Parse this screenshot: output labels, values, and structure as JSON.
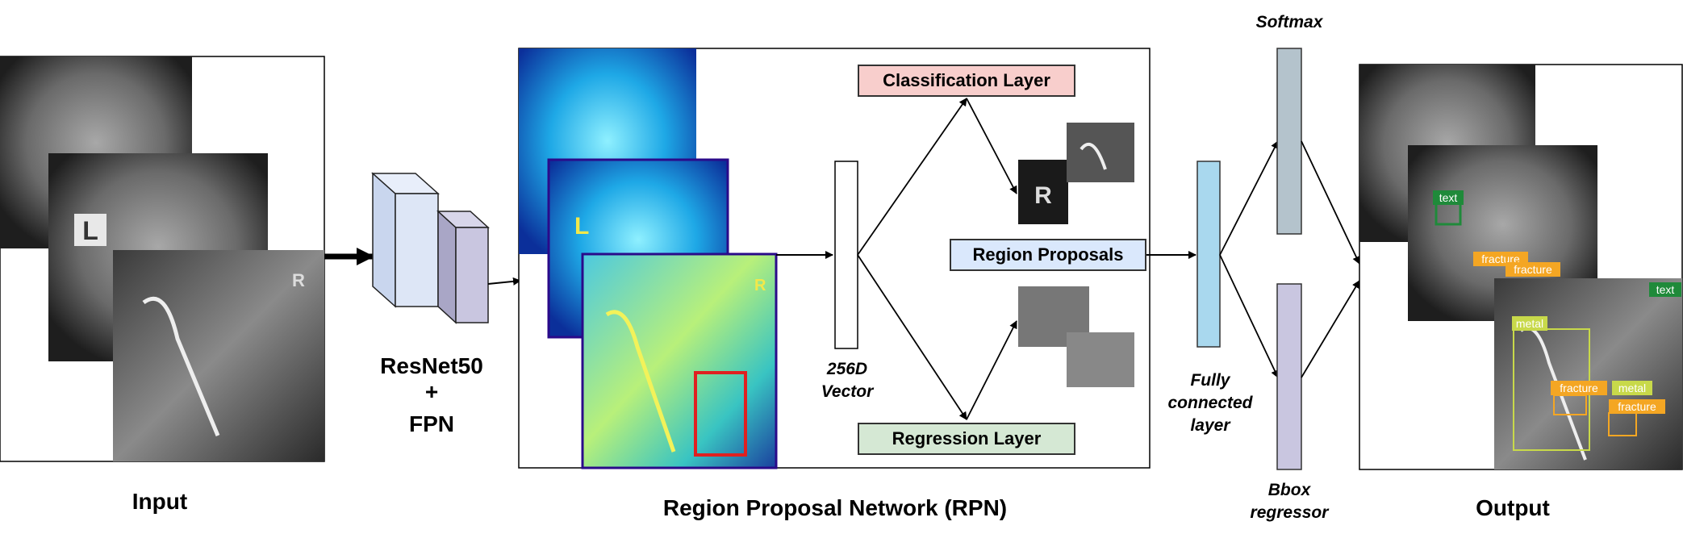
{
  "sections": {
    "input": "Input",
    "rpn": "Region Proposal Network (RPN)",
    "output": "Output"
  },
  "backbone": {
    "line1": "ResNet50",
    "line2": "+",
    "line3": "FPN"
  },
  "vector_label": {
    "line1": "256D",
    "line2": "Vector"
  },
  "layers": {
    "classification": "Classification Layer",
    "region_proposals": "Region Proposals",
    "regression": "Regression Layer"
  },
  "fc_label": {
    "line1": "Fully",
    "line2": "connected",
    "line3": "layer"
  },
  "softmax": "Softmax",
  "bbox": {
    "line1": "Bbox",
    "line2": "regressor"
  },
  "xray_tags": {
    "left_marker": "L",
    "right_marker": "R"
  },
  "detection_tags": {
    "text": "text",
    "fracture": "fracture",
    "metal": "metal"
  },
  "colors": {
    "classification_fill": "#f8cecc",
    "proposals_fill": "#dae8fc",
    "regression_fill": "#d5e8d4",
    "fc_fill": "#a9d8ee",
    "softmax_fill": "#b4c3cc",
    "bbox_fill": "#c9c6e0",
    "fracture_tag": "#f4a623",
    "metal_tag": "#c8d94a",
    "text_tag": "#1f8a3a",
    "roi_box": "#e02020"
  }
}
